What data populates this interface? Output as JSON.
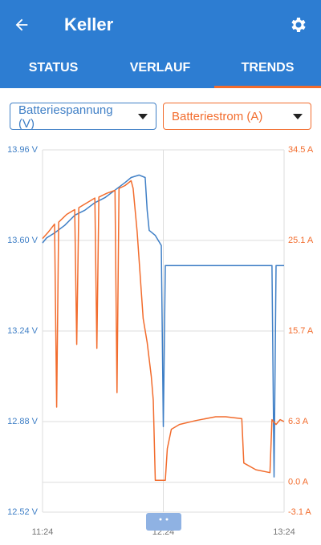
{
  "app_bar": {
    "title": "Keller"
  },
  "tabs": [
    "STATUS",
    "VERLAUF",
    "TRENDS"
  ],
  "chart_data": {
    "type": "line",
    "xlim": [
      "11:24",
      "13:24"
    ],
    "xticks": [
      "11:24",
      "12:24",
      "13:24"
    ],
    "ylim": [
      12.52,
      13.96
    ],
    "yticks": [
      {
        "value": 12.52,
        "label": "12.52 V"
      },
      {
        "value": 12.88,
        "label": "12.88 V"
      },
      {
        "value": 13.24,
        "label": "13.24 V"
      },
      {
        "value": 13.6,
        "label": "13.60 V"
      },
      {
        "value": 13.96,
        "label": "13.96 V"
      }
    ],
    "y2lim": [
      -3.1,
      34.5
    ],
    "y2ticks": [
      {
        "value": -3.1,
        "label": "-3.1 A"
      },
      {
        "value": 0,
        "label": "0.0 A"
      },
      {
        "value": 6.3,
        "label": "6.3 A"
      },
      {
        "value": 15.7,
        "label": "15.7 A"
      },
      {
        "value": 25.1,
        "label": "25.1 A"
      },
      {
        "value": 34.5,
        "label": "34.5 A"
      }
    ],
    "grid": true,
    "series": [
      {
        "name": "Batteriespannung (V)",
        "color": "#3f7fc6",
        "x": [
          "11:24",
          "11:26",
          "11:30",
          "11:35",
          "11:40",
          "11:45",
          "11:50",
          "11:55",
          "12:00",
          "12:05",
          "12:08",
          "12:12",
          "12:15",
          "12:16",
          "12:17",
          "12:20",
          "12:23",
          "12:24",
          "12:25",
          "13:18",
          "13:19",
          "13:20",
          "13:24"
        ],
        "values": [
          13.59,
          13.61,
          13.63,
          13.66,
          13.7,
          13.72,
          13.75,
          13.77,
          13.8,
          13.83,
          13.85,
          13.86,
          13.85,
          13.72,
          13.64,
          13.62,
          13.58,
          12.86,
          13.5,
          13.5,
          12.66,
          13.5,
          13.5
        ]
      },
      {
        "name": "Batteriestrom (A)",
        "color": "#f26c2d",
        "axis": "y2",
        "x": [
          "11:24",
          "11:27",
          "11:30",
          "11:31",
          "11:32",
          "11:36",
          "11:40",
          "11:41",
          "11:42",
          "11:46",
          "11:50",
          "11:51",
          "11:52",
          "11:56",
          "12:00",
          "12:01",
          "12:02",
          "12:05",
          "12:08",
          "12:09",
          "12:11",
          "12:13",
          "12:14",
          "12:16",
          "12:18",
          "12:19",
          "12:20",
          "12:25",
          "12:26",
          "12:28",
          "12:32",
          "12:40",
          "12:50",
          "12:55",
          "13:03",
          "13:04",
          "13:10",
          "13:17",
          "13:18",
          "13:20",
          "13:22",
          "13:24"
        ],
        "values": [
          25.3,
          26,
          26.8,
          7.8,
          27,
          27.8,
          28.3,
          14.3,
          28.5,
          29,
          29.5,
          13.9,
          29.6,
          30,
          30.3,
          9.3,
          30.5,
          30.8,
          31.3,
          30.5,
          26,
          20,
          17,
          14.5,
          11,
          8.5,
          0.2,
          0.2,
          3.5,
          5.5,
          6,
          6.4,
          6.8,
          6.8,
          6.6,
          2,
          1.3,
          1,
          6.5,
          6,
          6.5,
          6.3
        ]
      }
    ]
  }
}
